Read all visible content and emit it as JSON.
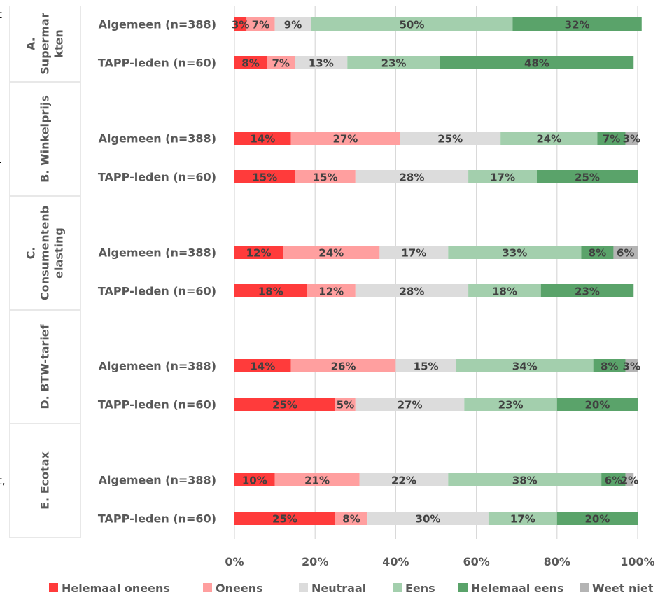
{
  "chart_data": {
    "type": "stacked-bar-horizontal-100",
    "title": "",
    "xlabel": "",
    "ylabel": "",
    "xlim": [
      0,
      100
    ],
    "x_ticks": [
      "0%",
      "20%",
      "40%",
      "60%",
      "80%",
      "100%"
    ],
    "grid": true,
    "legend_position": "bottom",
    "series": [
      {
        "name": "Helemaal oneens",
        "color": "#ff3b3b"
      },
      {
        "name": "Oneens",
        "color": "#ff9f9f"
      },
      {
        "name": "Neutraal",
        "color": "#dcdcdc"
      },
      {
        "name": "Eens",
        "color": "#a3cfad"
      },
      {
        "name": "Helemaal eens",
        "color": "#5aa36a"
      },
      {
        "name": "Weet niet",
        "color": "#b4b4b4"
      }
    ],
    "groups": [
      {
        "label": "A. Supermarkten",
        "label_lines": [
          "A.",
          "Supermar",
          "kten"
        ],
        "rows": [
          {
            "label": "Algemeen (n=388)",
            "values": [
              3,
              7,
              9,
              50,
              32,
              0
            ],
            "value_labels": [
              "3%",
              "7%",
              "9%",
              "50%",
              "32%",
              ""
            ]
          },
          {
            "label": "TAPP-leden (n=60)",
            "values": [
              8,
              7,
              13,
              23,
              48,
              0
            ],
            "value_labels": [
              "8%",
              "7%",
              "13%",
              "23%",
              "48%",
              ""
            ]
          }
        ]
      },
      {
        "label": "B. Winkelprijs",
        "label_lines": [
          "B. Winkelprijs"
        ],
        "rows": [
          {
            "label": "Algemeen (n=388)",
            "values": [
              14,
              27,
              25,
              24,
              7,
              3
            ],
            "value_labels": [
              "14%",
              "27%",
              "25%",
              "24%",
              "7%",
              "3%"
            ]
          },
          {
            "label": "TAPP-leden (n=60)",
            "values": [
              15,
              15,
              28,
              17,
              25,
              0
            ],
            "value_labels": [
              "15%",
              "15%",
              "28%",
              "17%",
              "25%",
              ""
            ]
          }
        ]
      },
      {
        "label": "C. Consumentenbelasting",
        "label_lines": [
          "C.",
          "Consumentenb",
          "elasting"
        ],
        "rows": [
          {
            "label": "Algemeen (n=388)",
            "values": [
              12,
              24,
              17,
              33,
              8,
              6
            ],
            "value_labels": [
              "12%",
              "24%",
              "17%",
              "33%",
              "8%",
              "6%"
            ]
          },
          {
            "label": "TAPP-leden (n=60)",
            "values": [
              18,
              12,
              28,
              18,
              23,
              0
            ],
            "value_labels": [
              "18%",
              "12%",
              "28%",
              "18%",
              "23%",
              ""
            ]
          }
        ]
      },
      {
        "label": "D. BTW-tarief",
        "label_lines": [
          "D. BTW-tarief"
        ],
        "rows": [
          {
            "label": "Algemeen (n=388)",
            "values": [
              14,
              26,
              15,
              34,
              8,
              3
            ],
            "value_labels": [
              "14%",
              "26%",
              "15%",
              "34%",
              "8%",
              "3%"
            ]
          },
          {
            "label": "TAPP-leden (n=60)",
            "values": [
              25,
              5,
              27,
              23,
              20,
              0
            ],
            "value_labels": [
              "25%",
              "5%",
              "27%",
              "23%",
              "20%",
              ""
            ]
          }
        ]
      },
      {
        "label": "E. Ecotax",
        "label_lines": [
          "E. Ecotax"
        ],
        "rows": [
          {
            "label": "Algemeen (n=388)",
            "values": [
              10,
              21,
              22,
              38,
              6,
              2
            ],
            "value_labels": [
              "10%",
              "21%",
              "22%",
              "38%",
              "6%",
              "2%"
            ]
          },
          {
            "label": "TAPP-leden (n=60)",
            "values": [
              25,
              8,
              30,
              17,
              20,
              0
            ],
            "value_labels": [
              "25%",
              "8%",
              "30%",
              "17%",
              "20%",
              ""
            ]
          }
        ]
      }
    ]
  },
  "cropped_fragments": [
    "t",
    "t,"
  ]
}
